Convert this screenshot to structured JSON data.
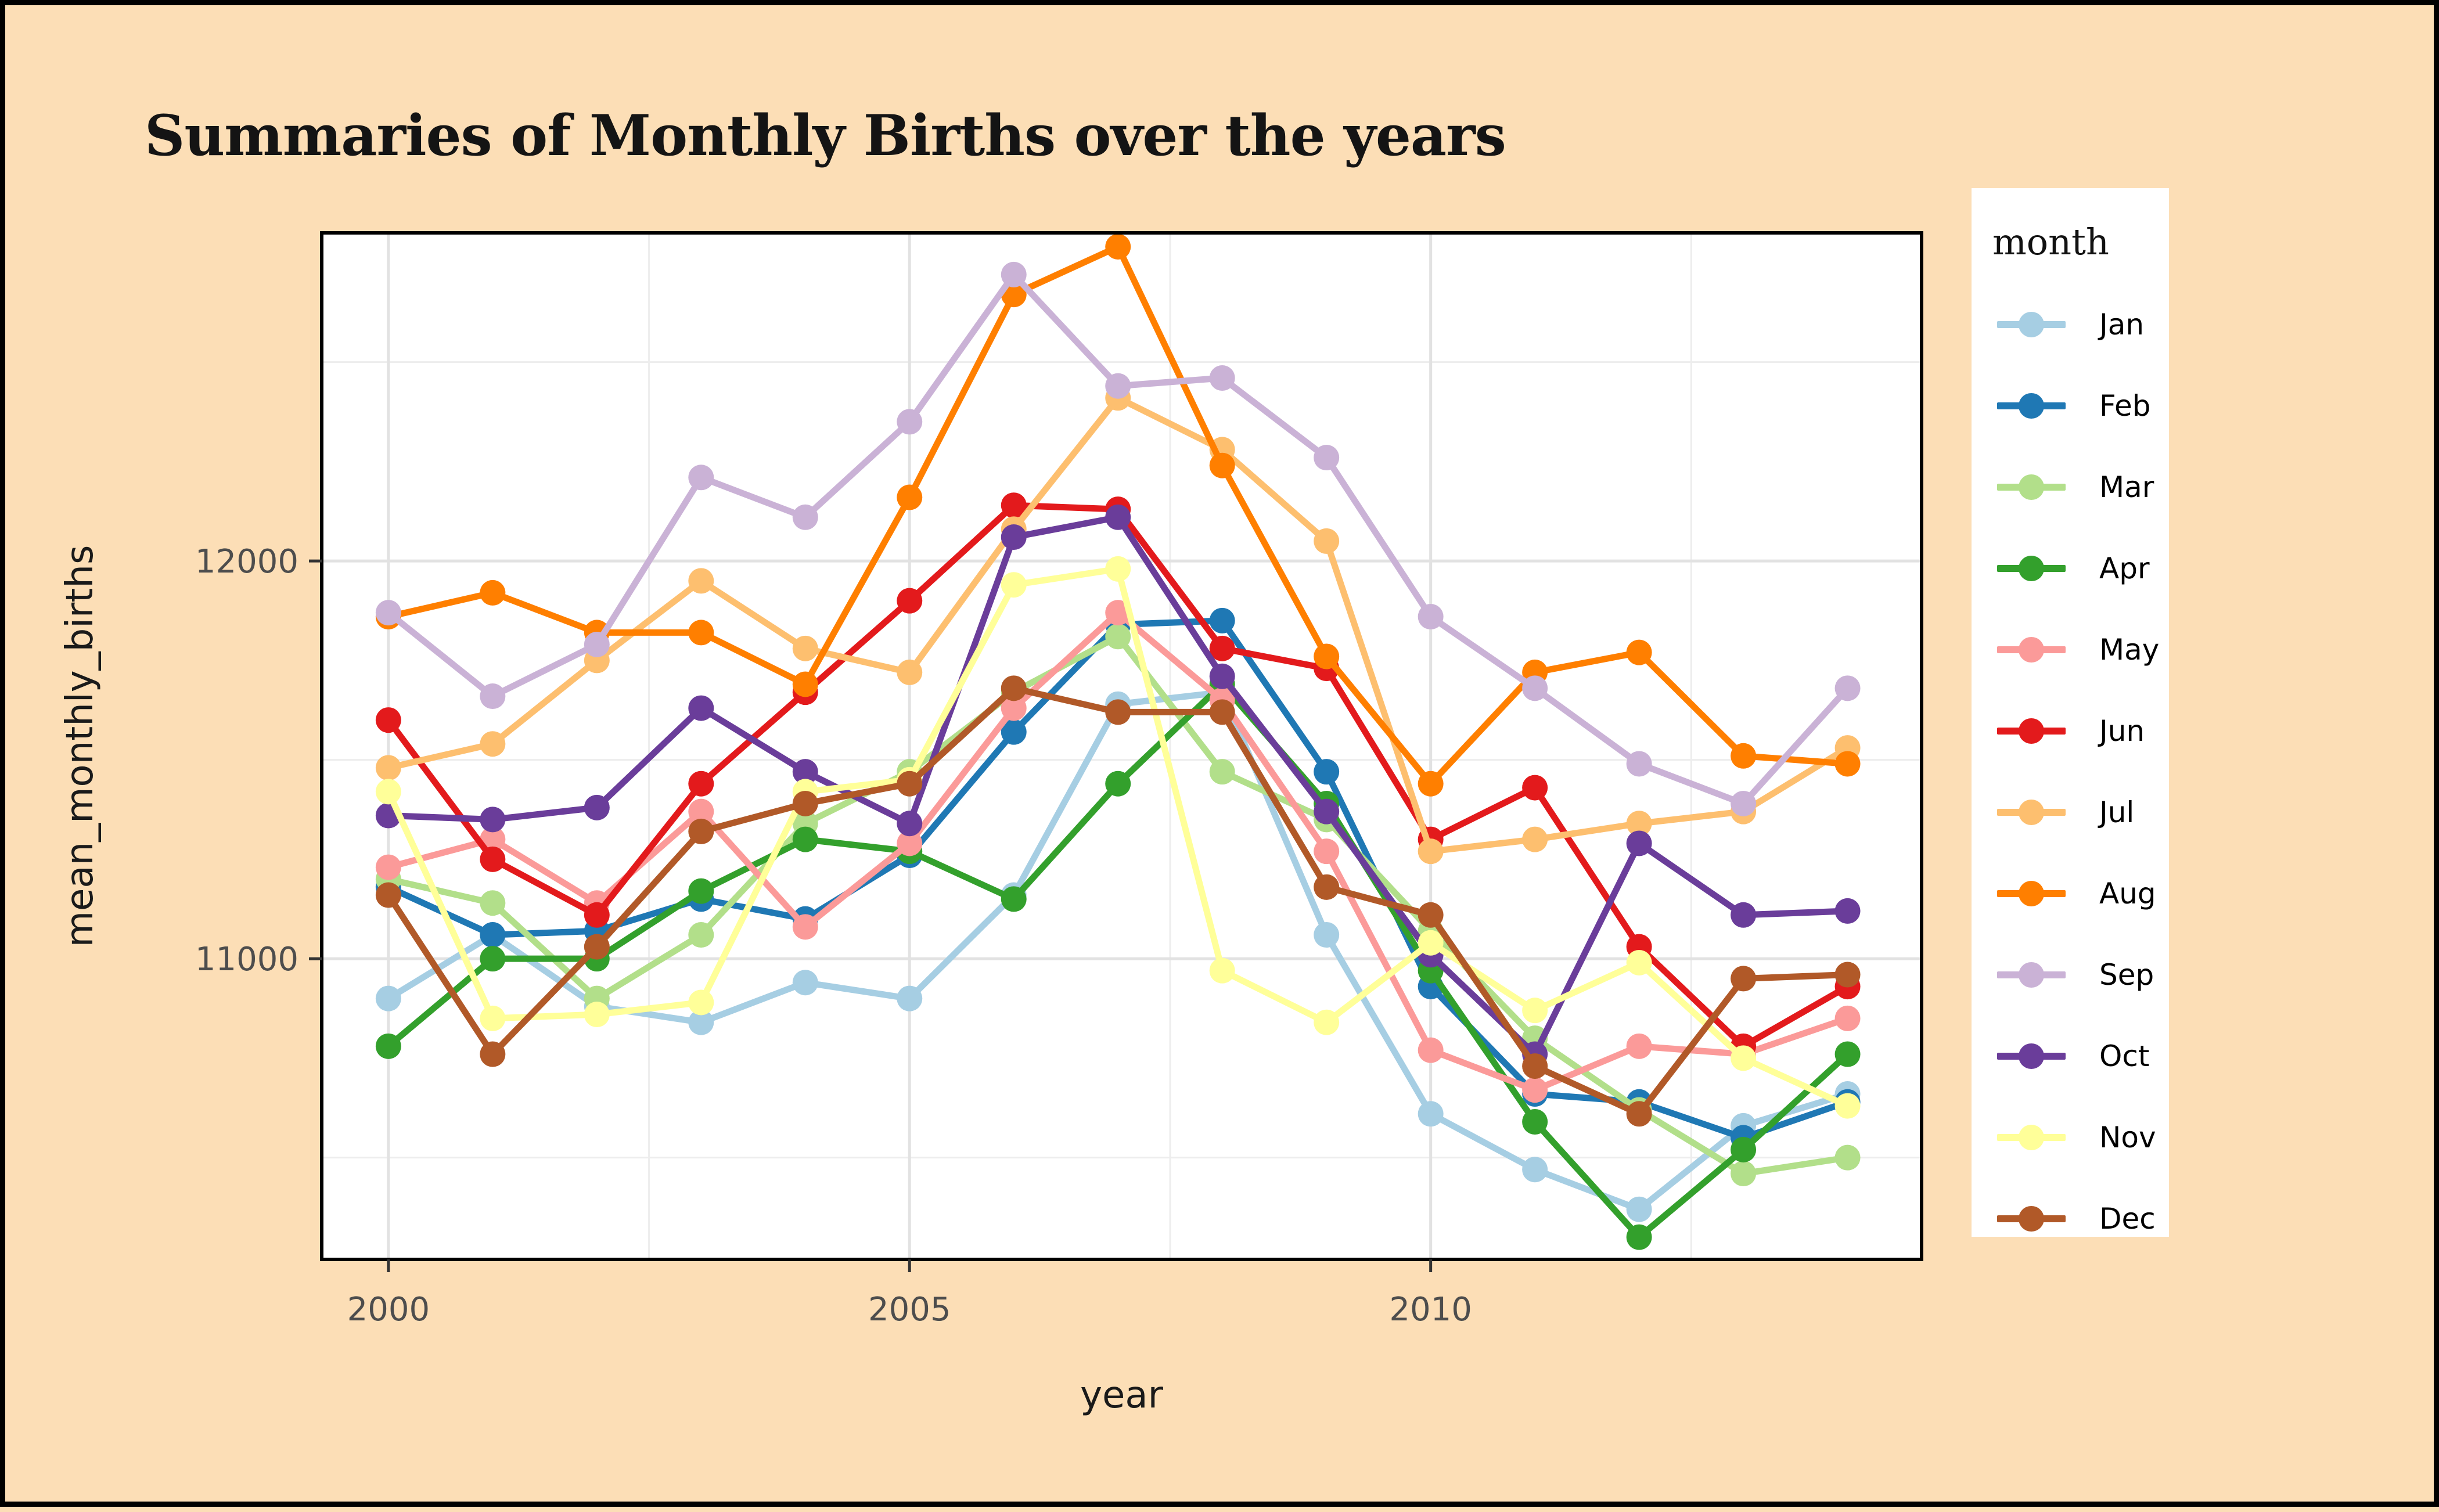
{
  "title": "Summaries of Monthly Births over the years",
  "legend": {
    "title": "month"
  },
  "axes": {
    "x_title": "year",
    "y_title": "mean_monthly_births",
    "x_tick_labels": [
      "2000",
      "2005",
      "2010"
    ],
    "y_tick_labels": [
      "11000",
      "12000"
    ]
  },
  "colors": {
    "background": "#FCDEB6",
    "frame": "#000000",
    "panel": "#FFFFFF",
    "panel_border": "#000000",
    "grid_major": "#E2E2E2",
    "grid_minor": "#EDEDED",
    "tick": "#333333",
    "tick_label": "#4D4D4D",
    "axis_title": "#1A1A1A"
  },
  "chart_data": {
    "type": "line",
    "title": "Summaries of Monthly Births over the years",
    "xlabel": "year",
    "ylabel": "mean_monthly_births",
    "legend_title": "month",
    "legend_position": "right",
    "grid": true,
    "x": [
      2000,
      2001,
      2002,
      2003,
      2004,
      2005,
      2006,
      2007,
      2008,
      2009,
      2010,
      2011,
      2012,
      2013,
      2014
    ],
    "xlim": [
      1999.36,
      2014.71
    ],
    "ylim": [
      10244,
      12825
    ],
    "x_major_ticks": [
      2000,
      2005,
      2010
    ],
    "x_minor_ticks": [
      2002.5,
      2007.5,
      2012.5
    ],
    "y_major_ticks": [
      11000,
      12000
    ],
    "y_minor_ticks": [
      10500,
      11500,
      12500
    ],
    "series": [
      {
        "name": "Jan",
        "color": "#A6CEE3",
        "values": [
          10900,
          11060,
          10880,
          10840,
          10940,
          10900,
          11160,
          11640,
          11670,
          11060,
          10610,
          10470,
          10370,
          10580,
          10660
        ]
      },
      {
        "name": "Feb",
        "color": "#1F78B4",
        "values": [
          11180,
          11060,
          11070,
          11150,
          11100,
          11260,
          11570,
          11840,
          11850,
          11470,
          10930,
          10660,
          10640,
          10550,
          10640
        ]
      },
      {
        "name": "Mar",
        "color": "#B2DF8A",
        "values": [
          11200,
          11140,
          10900,
          11060,
          11340,
          11470,
          11670,
          11810,
          11470,
          11350,
          11070,
          10800,
          10620,
          10460,
          10500
        ]
      },
      {
        "name": "Apr",
        "color": "#33A02C",
        "values": [
          10780,
          11000,
          11000,
          11170,
          11300,
          11270,
          11150,
          11440,
          11690,
          11390,
          10970,
          10590,
          10300,
          10520,
          10760
        ]
      },
      {
        "name": "May",
        "color": "#FB9A99",
        "values": [
          11230,
          11300,
          11140,
          11370,
          11080,
          11290,
          11630,
          11870,
          11650,
          11270,
          10770,
          10670,
          10780,
          10760,
          10850
        ]
      },
      {
        "name": "Jun",
        "color": "#E31A1C",
        "values": [
          11600,
          11250,
          11110,
          11440,
          11670,
          11900,
          12140,
          12130,
          11780,
          11730,
          11300,
          11430,
          11030,
          10780,
          10930
        ]
      },
      {
        "name": "Jul",
        "color": "#FDBF6F",
        "values": [
          11480,
          11540,
          11750,
          11950,
          11780,
          11720,
          12080,
          12410,
          12280,
          12050,
          11270,
          11300,
          11340,
          11370,
          11530
        ]
      },
      {
        "name": "Aug",
        "color": "#FF7F00",
        "values": [
          11860,
          11920,
          11820,
          11820,
          11690,
          12160,
          12670,
          12790,
          12240,
          11760,
          11440,
          11720,
          11770,
          11510,
          11490
        ]
      },
      {
        "name": "Sep",
        "color": "#CAB2D6",
        "values": [
          11870,
          11660,
          11790,
          12210,
          12110,
          12350,
          12720,
          12440,
          12460,
          12260,
          11860,
          11680,
          11490,
          11390,
          11680
        ]
      },
      {
        "name": "Oct",
        "color": "#6A3D9A",
        "values": [
          11360,
          11350,
          11380,
          11630,
          11470,
          11340,
          12060,
          12110,
          11710,
          11370,
          11010,
          10760,
          11290,
          11110,
          11120
        ]
      },
      {
        "name": "Nov",
        "color": "#FFFF99",
        "values": [
          11420,
          10850,
          10860,
          10890,
          11420,
          11450,
          11940,
          11980,
          10970,
          10840,
          11040,
          10870,
          10990,
          10750,
          10630
        ]
      },
      {
        "name": "Dec",
        "color": "#B15928",
        "values": [
          11160,
          10760,
          11030,
          11320,
          11390,
          11440,
          11680,
          11620,
          11620,
          11180,
          11110,
          10730,
          10610,
          10950,
          10960
        ]
      }
    ]
  }
}
